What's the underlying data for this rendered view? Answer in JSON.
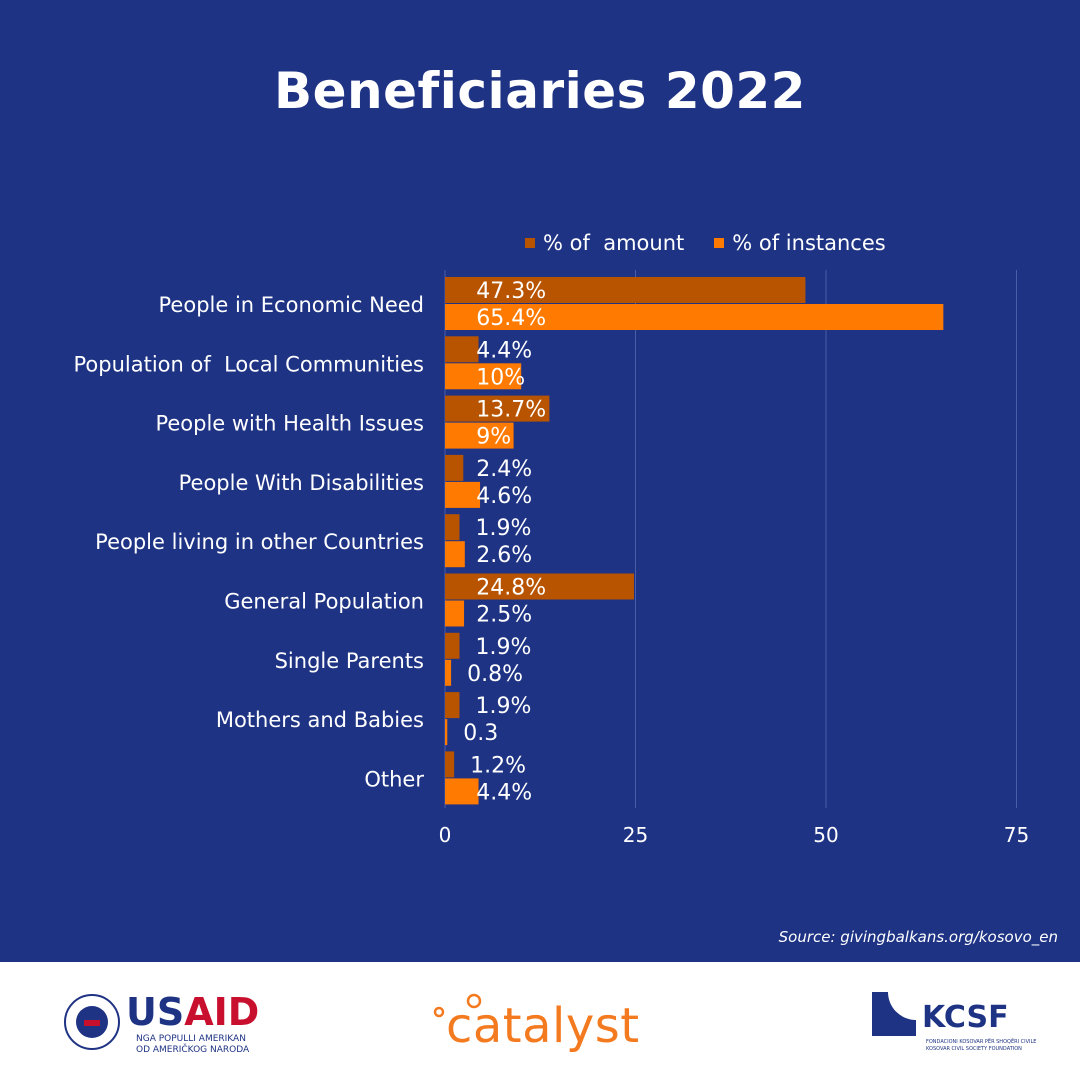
{
  "chart_data": {
    "type": "bar",
    "orientation": "horizontal",
    "title": "Beneficiaries 2022",
    "categories": [
      "People in Economic Need",
      "Population of  Local Communities",
      "People with Health Issues",
      "People With Disabilities",
      "People living in other Countries",
      "General Population",
      "Single Parents",
      "Mothers and Babies",
      "Other"
    ],
    "series": [
      {
        "name": "% of  amount",
        "color": "#b85400",
        "values": [
          47.3,
          4.4,
          13.7,
          2.4,
          1.9,
          24.8,
          1.9,
          1.9,
          1.2
        ],
        "labels": [
          "47.3%",
          "4.4%",
          "13.7%",
          "2.4%",
          "1.9%",
          "24.8%",
          "1.9%",
          "1.9%",
          "1.2%"
        ]
      },
      {
        "name": "% of instances",
        "color": "#ff7a00",
        "values": [
          65.4,
          10,
          9,
          4.6,
          2.6,
          2.5,
          0.8,
          0.3,
          4.4
        ],
        "labels": [
          "65.4%",
          "10%",
          "9%",
          "4.6%",
          "2.6%",
          "2.5%",
          "0.8%",
          "0.3",
          "4.4%"
        ]
      }
    ],
    "xlim": [
      0,
      75
    ],
    "xticks": [
      "0",
      "25",
      "50",
      "75"
    ],
    "grid": true,
    "legend_position": "top"
  },
  "source": "Source: givingbalkans.org/kosovo_en",
  "footer": {
    "usaid": {
      "name_part1": "US",
      "name_part2": "AID",
      "line1": "NGA POPULLI AMERIKAN",
      "line2": "OD AMERIČKOG NARODA"
    },
    "catalyst": {
      "name": "catalyst"
    },
    "kcsf": {
      "name": "KCSF",
      "line1": "FONDACIONI KOSOVAR PËR SHOQËRI CIVILE",
      "line2": "KOSOVAR CIVIL SOCIETY FOUNDATION"
    }
  },
  "colors": {
    "background": "#1e3384",
    "text": "#ffffff",
    "grid": "#4a5ea8"
  }
}
